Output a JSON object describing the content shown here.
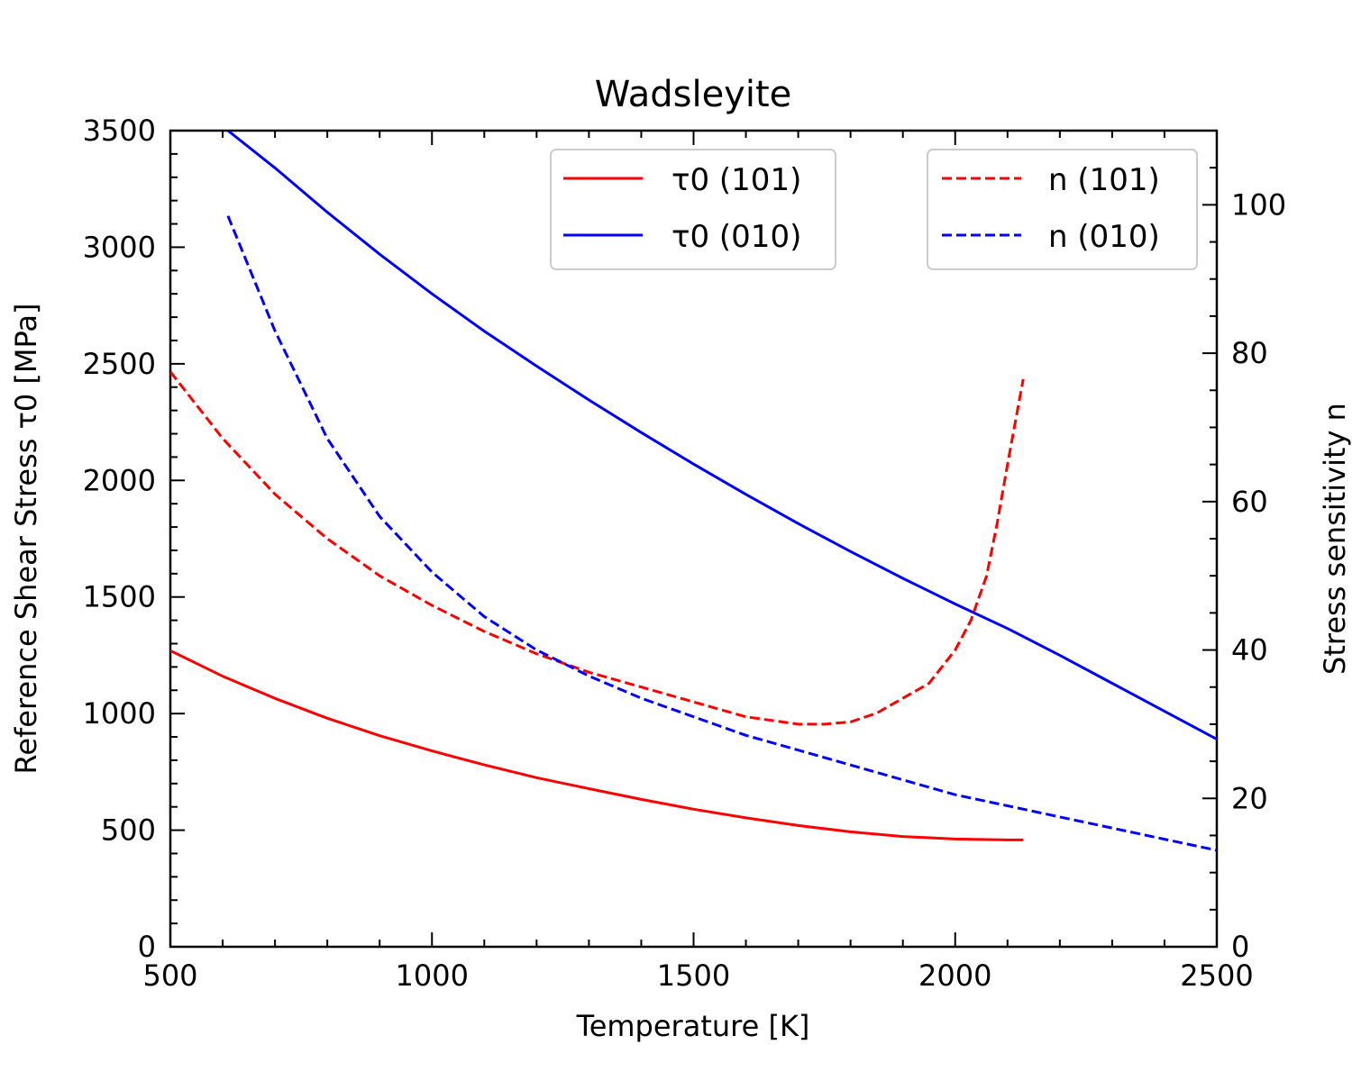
{
  "chart_data": {
    "type": "line",
    "title": "Wadsleyite",
    "xlabel": "Temperature [K]",
    "ylabel": "Reference Shear Stress τ0 [MPa]",
    "ylabel_right": "Stress sensitivity n",
    "xlim": [
      500,
      2500
    ],
    "ylim": [
      0,
      3500
    ],
    "ylim_right": [
      0,
      110
    ],
    "xticks": [
      "500",
      "1000",
      "1500",
      "2000",
      "2500"
    ],
    "yticks": [
      "0",
      "500",
      "1000",
      "1500",
      "2000",
      "2500",
      "3000",
      "3500"
    ],
    "yticks_right": [
      "0",
      "20",
      "40",
      "60",
      "80",
      "100"
    ],
    "colors": {
      "red": "#ff0000",
      "blue": "#0000ff"
    },
    "legend_left": [
      {
        "label": "τ0 (101)",
        "series": "tau0_101"
      },
      {
        "label": "τ0 (010)",
        "series": "tau0_010"
      }
    ],
    "legend_right": [
      {
        "label": "n (101)",
        "series": "n_101"
      },
      {
        "label": "n (010)",
        "series": "n_010"
      }
    ],
    "series": [
      {
        "name": "τ0 (101)",
        "key": "tau0_101",
        "axis": "left",
        "color": "#ff0000",
        "style": "solid",
        "x": [
          500,
          600,
          700,
          800,
          900,
          1000,
          1100,
          1200,
          1300,
          1400,
          1500,
          1600,
          1700,
          1800,
          1900,
          2000,
          2100,
          2130
        ],
        "y": [
          1270,
          1160,
          1065,
          980,
          905,
          840,
          780,
          725,
          678,
          632,
          590,
          553,
          520,
          493,
          473,
          462,
          458,
          458
        ]
      },
      {
        "name": "τ0 (010)",
        "key": "tau0_010",
        "axis": "left",
        "color": "#0000ff",
        "style": "solid",
        "x": [
          610,
          700,
          800,
          900,
          1000,
          1100,
          1200,
          1300,
          1400,
          1500,
          1600,
          1700,
          1800,
          1900,
          2000,
          2100,
          2200,
          2300,
          2400,
          2500
        ],
        "y": [
          3500,
          3340,
          3150,
          2970,
          2800,
          2640,
          2490,
          2345,
          2205,
          2070,
          1940,
          1815,
          1695,
          1580,
          1470,
          1365,
          1250,
          1130,
          1010,
          890
        ]
      },
      {
        "name": "n (101)",
        "key": "n_101",
        "axis": "right",
        "color": "#ff0000",
        "style": "dashed",
        "x": [
          500,
          600,
          700,
          800,
          900,
          1000,
          1100,
          1200,
          1300,
          1400,
          1500,
          1600,
          1700,
          1750,
          1800,
          1850,
          1900,
          1950,
          2000,
          2030,
          2060,
          2080,
          2100,
          2130
        ],
        "y": [
          77.5,
          68.5,
          61.0,
          55.0,
          50.0,
          46.0,
          42.5,
          39.5,
          37.0,
          35.0,
          33.0,
          31.0,
          30.0,
          30.0,
          30.3,
          31.5,
          33.5,
          35.5,
          40.0,
          44.0,
          50.0,
          57.0,
          65.0,
          76.5
        ]
      },
      {
        "name": "n (010)",
        "key": "n_010",
        "axis": "right",
        "color": "#0000ff",
        "style": "dashed",
        "x": [
          610,
          700,
          800,
          900,
          1000,
          1100,
          1200,
          1300,
          1400,
          1500,
          1600,
          1700,
          1800,
          1900,
          2000,
          2100,
          2200,
          2300,
          2400,
          2500
        ],
        "y": [
          98.5,
          83.0,
          68.5,
          58.0,
          50.5,
          44.5,
          40.0,
          36.5,
          33.5,
          31.0,
          28.5,
          26.5,
          24.5,
          22.5,
          20.5,
          19.0,
          17.5,
          16.0,
          14.5,
          13.0
        ]
      }
    ]
  }
}
